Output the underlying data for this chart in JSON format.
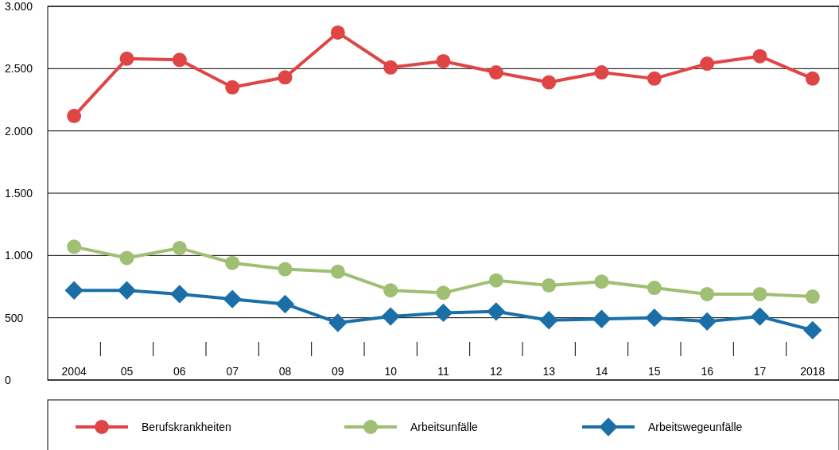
{
  "chart_data": {
    "type": "line",
    "categories": [
      "2004",
      "05",
      "06",
      "07",
      "08",
      "09",
      "10",
      "11",
      "12",
      "13",
      "14",
      "15",
      "16",
      "17",
      "2018"
    ],
    "ylim": [
      0,
      3000
    ],
    "yticks": [
      {
        "value": 0,
        "label": "0"
      },
      {
        "value": 500,
        "label": "500"
      },
      {
        "value": 1000,
        "label": "1.000"
      },
      {
        "value": 1500,
        "label": "1.500"
      },
      {
        "value": 2000,
        "label": "2.000"
      },
      {
        "value": 2500,
        "label": "2.500"
      },
      {
        "value": 3000,
        "label": "3.000"
      }
    ],
    "grid": "y",
    "legend": "bottom",
    "line_style": "solid",
    "series": [
      {
        "name": "Berufskrankheiten",
        "color": "#e04545",
        "marker": "circle",
        "values": [
          2120,
          2580,
          2570,
          2350,
          2430,
          2790,
          2510,
          2560,
          2470,
          2390,
          2470,
          2420,
          2540,
          2600,
          2420
        ]
      },
      {
        "name": "Arbeitsunfälle",
        "color": "#9fbf73",
        "marker": "circle",
        "values": [
          1070,
          980,
          1060,
          940,
          890,
          870,
          720,
          700,
          800,
          760,
          790,
          740,
          690,
          690,
          670
        ]
      },
      {
        "name": "Arbeitswegeunfälle",
        "color": "#1a6fa8",
        "marker": "diamond",
        "values": [
          720,
          720,
          690,
          650,
          610,
          460,
          510,
          540,
          550,
          480,
          490,
          500,
          470,
          510,
          400
        ]
      }
    ]
  }
}
